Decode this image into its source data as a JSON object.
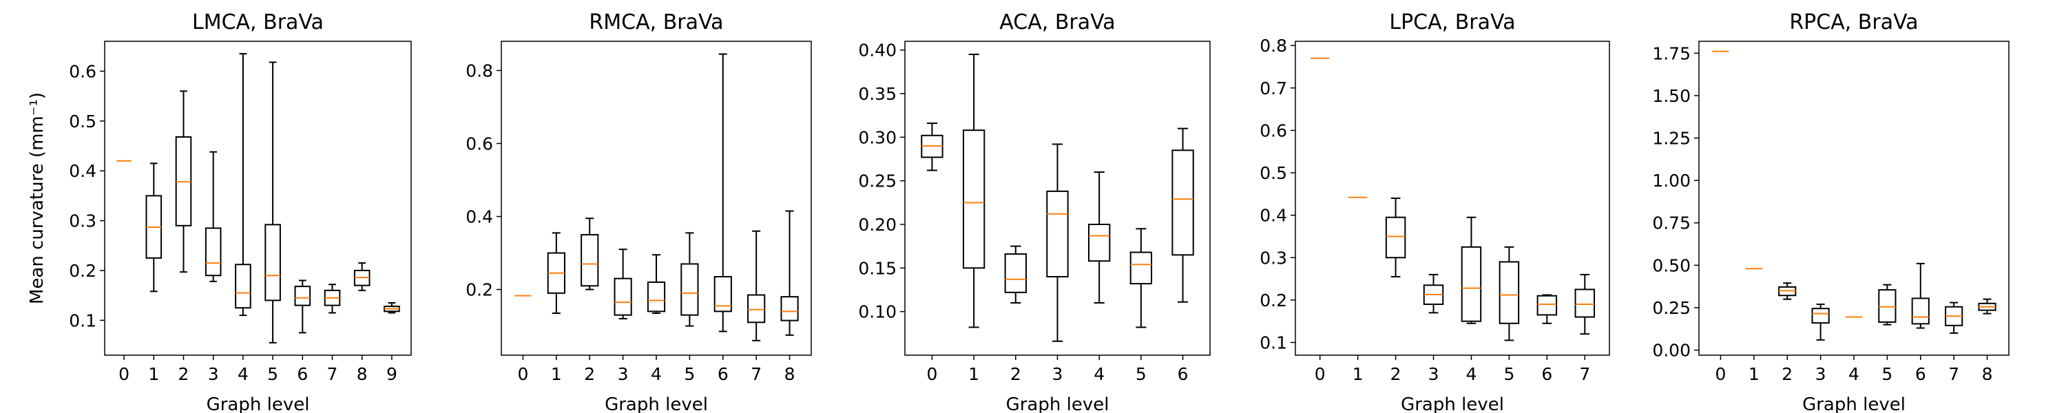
{
  "figure": {
    "ylabel": "Mean curvature (mm⁻¹)",
    "box_color": "#000000",
    "median_color": "#ff7f0e"
  },
  "chart_data": [
    {
      "type": "box",
      "title": "LMCA, BraVa",
      "xlabel": "Graph level",
      "ylabel": "Mean curvature (mm⁻¹)",
      "ylim": [
        0.03,
        0.66
      ],
      "yticks": [
        "0.1",
        "0.2",
        "0.3",
        "0.4",
        "0.5",
        "0.6"
      ],
      "categories": [
        "0",
        "1",
        "2",
        "3",
        "4",
        "5",
        "6",
        "7",
        "8",
        "9"
      ],
      "boxes": [
        {
          "whislo": 0.42,
          "q1": 0.42,
          "med": 0.42,
          "q3": 0.42,
          "whishi": 0.42
        },
        {
          "whislo": 0.158,
          "q1": 0.225,
          "med": 0.287,
          "q3": 0.35,
          "whishi": 0.415
        },
        {
          "whislo": 0.197,
          "q1": 0.29,
          "med": 0.378,
          "q3": 0.468,
          "whishi": 0.56
        },
        {
          "whislo": 0.178,
          "q1": 0.19,
          "med": 0.215,
          "q3": 0.285,
          "whishi": 0.438
        },
        {
          "whislo": 0.11,
          "q1": 0.125,
          "med": 0.155,
          "q3": 0.212,
          "whishi": 0.635
        },
        {
          "whislo": 0.055,
          "q1": 0.14,
          "med": 0.19,
          "q3": 0.292,
          "whishi": 0.618
        },
        {
          "whislo": 0.075,
          "q1": 0.13,
          "med": 0.145,
          "q3": 0.168,
          "whishi": 0.18
        },
        {
          "whislo": 0.115,
          "q1": 0.13,
          "med": 0.145,
          "q3": 0.16,
          "whishi": 0.172
        },
        {
          "whislo": 0.16,
          "q1": 0.17,
          "med": 0.186,
          "q3": 0.2,
          "whishi": 0.215
        },
        {
          "whislo": 0.115,
          "q1": 0.118,
          "med": 0.123,
          "q3": 0.128,
          "whishi": 0.135
        }
      ]
    },
    {
      "type": "box",
      "title": "RMCA, BraVa",
      "xlabel": "Graph level",
      "ylim": [
        0.02,
        0.88
      ],
      "yticks": [
        "0.2",
        "0.4",
        "0.6",
        "0.8"
      ],
      "categories": [
        "0",
        "1",
        "2",
        "3",
        "4",
        "5",
        "6",
        "7",
        "8"
      ],
      "boxes": [
        {
          "whislo": 0.183,
          "q1": 0.183,
          "med": 0.183,
          "q3": 0.183,
          "whishi": 0.183
        },
        {
          "whislo": 0.135,
          "q1": 0.19,
          "med": 0.245,
          "q3": 0.3,
          "whishi": 0.355
        },
        {
          "whislo": 0.2,
          "q1": 0.21,
          "med": 0.27,
          "q3": 0.35,
          "whishi": 0.395
        },
        {
          "whislo": 0.12,
          "q1": 0.13,
          "med": 0.165,
          "q3": 0.23,
          "whishi": 0.31
        },
        {
          "whislo": 0.135,
          "q1": 0.14,
          "med": 0.17,
          "q3": 0.22,
          "whishi": 0.295
        },
        {
          "whislo": 0.1,
          "q1": 0.13,
          "med": 0.19,
          "q3": 0.27,
          "whishi": 0.355
        },
        {
          "whislo": 0.085,
          "q1": 0.14,
          "med": 0.155,
          "q3": 0.235,
          "whishi": 0.845
        },
        {
          "whislo": 0.06,
          "q1": 0.11,
          "med": 0.145,
          "q3": 0.185,
          "whishi": 0.36
        },
        {
          "whislo": 0.075,
          "q1": 0.115,
          "med": 0.14,
          "q3": 0.18,
          "whishi": 0.415
        }
      ]
    },
    {
      "type": "box",
      "title": "ACA, BraVa",
      "xlabel": "Graph level",
      "ylim": [
        0.05,
        0.41
      ],
      "yticks": [
        "0.10",
        "0.15",
        "0.20",
        "0.25",
        "0.30",
        "0.35",
        "0.40"
      ],
      "categories": [
        "0",
        "1",
        "2",
        "3",
        "4",
        "5",
        "6"
      ],
      "boxes": [
        {
          "whislo": 0.262,
          "q1": 0.277,
          "med": 0.29,
          "q3": 0.302,
          "whishi": 0.316
        },
        {
          "whislo": 0.082,
          "q1": 0.15,
          "med": 0.225,
          "q3": 0.308,
          "whishi": 0.395
        },
        {
          "whislo": 0.11,
          "q1": 0.122,
          "med": 0.137,
          "q3": 0.166,
          "whishi": 0.175
        },
        {
          "whislo": 0.066,
          "q1": 0.14,
          "med": 0.212,
          "q3": 0.238,
          "whishi": 0.292
        },
        {
          "whislo": 0.11,
          "q1": 0.158,
          "med": 0.187,
          "q3": 0.2,
          "whishi": 0.26
        },
        {
          "whislo": 0.082,
          "q1": 0.132,
          "med": 0.154,
          "q3": 0.168,
          "whishi": 0.195
        },
        {
          "whislo": 0.111,
          "q1": 0.165,
          "med": 0.229,
          "q3": 0.285,
          "whishi": 0.31
        }
      ]
    },
    {
      "type": "box",
      "title": "LPCA, BraVa",
      "xlabel": "Graph level",
      "ylim": [
        0.07,
        0.81
      ],
      "yticks": [
        "0.1",
        "0.2",
        "0.3",
        "0.4",
        "0.5",
        "0.6",
        "0.7",
        "0.8"
      ],
      "categories": [
        "0",
        "1",
        "2",
        "3",
        "4",
        "5",
        "6",
        "7"
      ],
      "boxes": [
        {
          "whislo": 0.77,
          "q1": 0.77,
          "med": 0.77,
          "q3": 0.77,
          "whishi": 0.77
        },
        {
          "whislo": 0.442,
          "q1": 0.442,
          "med": 0.442,
          "q3": 0.442,
          "whishi": 0.442
        },
        {
          "whislo": 0.255,
          "q1": 0.3,
          "med": 0.35,
          "q3": 0.395,
          "whishi": 0.44
        },
        {
          "whislo": 0.17,
          "q1": 0.19,
          "med": 0.213,
          "q3": 0.235,
          "whishi": 0.26
        },
        {
          "whislo": 0.145,
          "q1": 0.15,
          "med": 0.228,
          "q3": 0.325,
          "whishi": 0.395
        },
        {
          "whislo": 0.105,
          "q1": 0.145,
          "med": 0.212,
          "q3": 0.29,
          "whishi": 0.325
        },
        {
          "whislo": 0.145,
          "q1": 0.165,
          "med": 0.19,
          "q3": 0.21,
          "whishi": 0.212
        },
        {
          "whislo": 0.12,
          "q1": 0.16,
          "med": 0.19,
          "q3": 0.225,
          "whishi": 0.26
        }
      ]
    },
    {
      "type": "box",
      "title": "RPCA, BraVa",
      "xlabel": "Graph level",
      "ylim": [
        -0.03,
        1.82
      ],
      "yticks": [
        "0.00",
        "0.25",
        "0.50",
        "0.75",
        "1.00",
        "1.25",
        "1.50",
        "1.75"
      ],
      "categories": [
        "0",
        "1",
        "2",
        "3",
        "4",
        "5",
        "6",
        "7",
        "8"
      ],
      "boxes": [
        {
          "whislo": 1.76,
          "q1": 1.76,
          "med": 1.76,
          "q3": 1.76,
          "whishi": 1.76
        },
        {
          "whislo": 0.48,
          "q1": 0.48,
          "med": 0.48,
          "q3": 0.48,
          "whishi": 0.48
        },
        {
          "whislo": 0.3,
          "q1": 0.322,
          "med": 0.35,
          "q3": 0.372,
          "whishi": 0.395
        },
        {
          "whislo": 0.06,
          "q1": 0.16,
          "med": 0.215,
          "q3": 0.245,
          "whishi": 0.27
        },
        {
          "whislo": 0.195,
          "q1": 0.195,
          "med": 0.195,
          "q3": 0.195,
          "whishi": 0.195
        },
        {
          "whislo": 0.15,
          "q1": 0.165,
          "med": 0.255,
          "q3": 0.355,
          "whishi": 0.385
        },
        {
          "whislo": 0.13,
          "q1": 0.155,
          "med": 0.195,
          "q3": 0.305,
          "whishi": 0.51
        },
        {
          "whislo": 0.1,
          "q1": 0.145,
          "med": 0.2,
          "q3": 0.255,
          "whishi": 0.28
        },
        {
          "whislo": 0.215,
          "q1": 0.235,
          "med": 0.255,
          "q3": 0.275,
          "whishi": 0.3
        }
      ]
    }
  ]
}
